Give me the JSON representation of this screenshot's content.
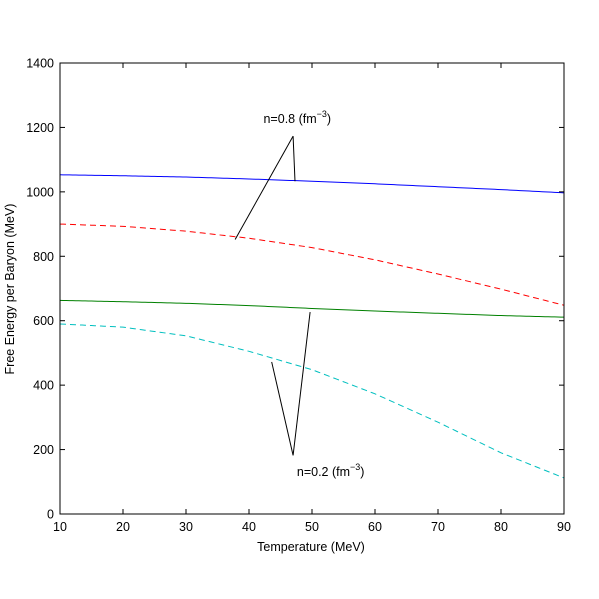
{
  "chart_data": {
    "type": "line",
    "title": "",
    "xlabel": "Temperature (MeV)",
    "ylabel": "Free Energy per Baryon (MeV)",
    "xlim": [
      10,
      90
    ],
    "ylim": [
      0,
      1400
    ],
    "xticks": [
      10,
      20,
      30,
      40,
      50,
      60,
      70,
      80,
      90
    ],
    "yticks": [
      0,
      200,
      400,
      600,
      800,
      1000,
      1200,
      1400
    ],
    "grid": false,
    "legend": "none",
    "series": [
      {
        "color": "#0000ff",
        "dash": "solid",
        "x": [
          10,
          20,
          30,
          40,
          50,
          60,
          70,
          80,
          90
        ],
        "y": [
          1053,
          1050,
          1046,
          1040,
          1033,
          1025,
          1016,
          1007,
          997
        ]
      },
      {
        "color": "#ff0000",
        "dash": "dashed",
        "x": [
          10,
          20,
          30,
          40,
          50,
          60,
          70,
          80,
          90
        ],
        "y": [
          900,
          893,
          878,
          856,
          827,
          789,
          745,
          698,
          648
        ]
      },
      {
        "color": "#008000",
        "dash": "solid",
        "x": [
          10,
          20,
          30,
          40,
          50,
          60,
          70,
          80,
          90
        ],
        "y": [
          663,
          659,
          654,
          647,
          638,
          630,
          623,
          616,
          611
        ]
      },
      {
        "color": "#00bfbf",
        "dash": "dashed",
        "x": [
          10,
          20,
          30,
          40,
          50,
          60,
          70,
          80,
          90
        ],
        "y": [
          590,
          580,
          553,
          505,
          448,
          373,
          285,
          190,
          112
        ]
      }
    ],
    "annotations": [
      {
        "label_base": "n=0.8 (fm",
        "label_exp": "−3",
        "label_close": ")",
        "text_at": [
          42.3,
          1213
        ],
        "vertex": [
          47.0,
          1173
        ],
        "pointers": [
          [
            37.8,
            852
          ],
          [
            47.3,
            1033
          ]
        ]
      },
      {
        "label_base": "n=0.2 (fm",
        "label_exp": "−3",
        "label_close": ")",
        "text_at": [
          47.6,
          118
        ],
        "vertex": [
          47.0,
          182
        ],
        "pointers": [
          [
            43.6,
            472
          ],
          [
            49.7,
            627
          ]
        ]
      }
    ]
  }
}
